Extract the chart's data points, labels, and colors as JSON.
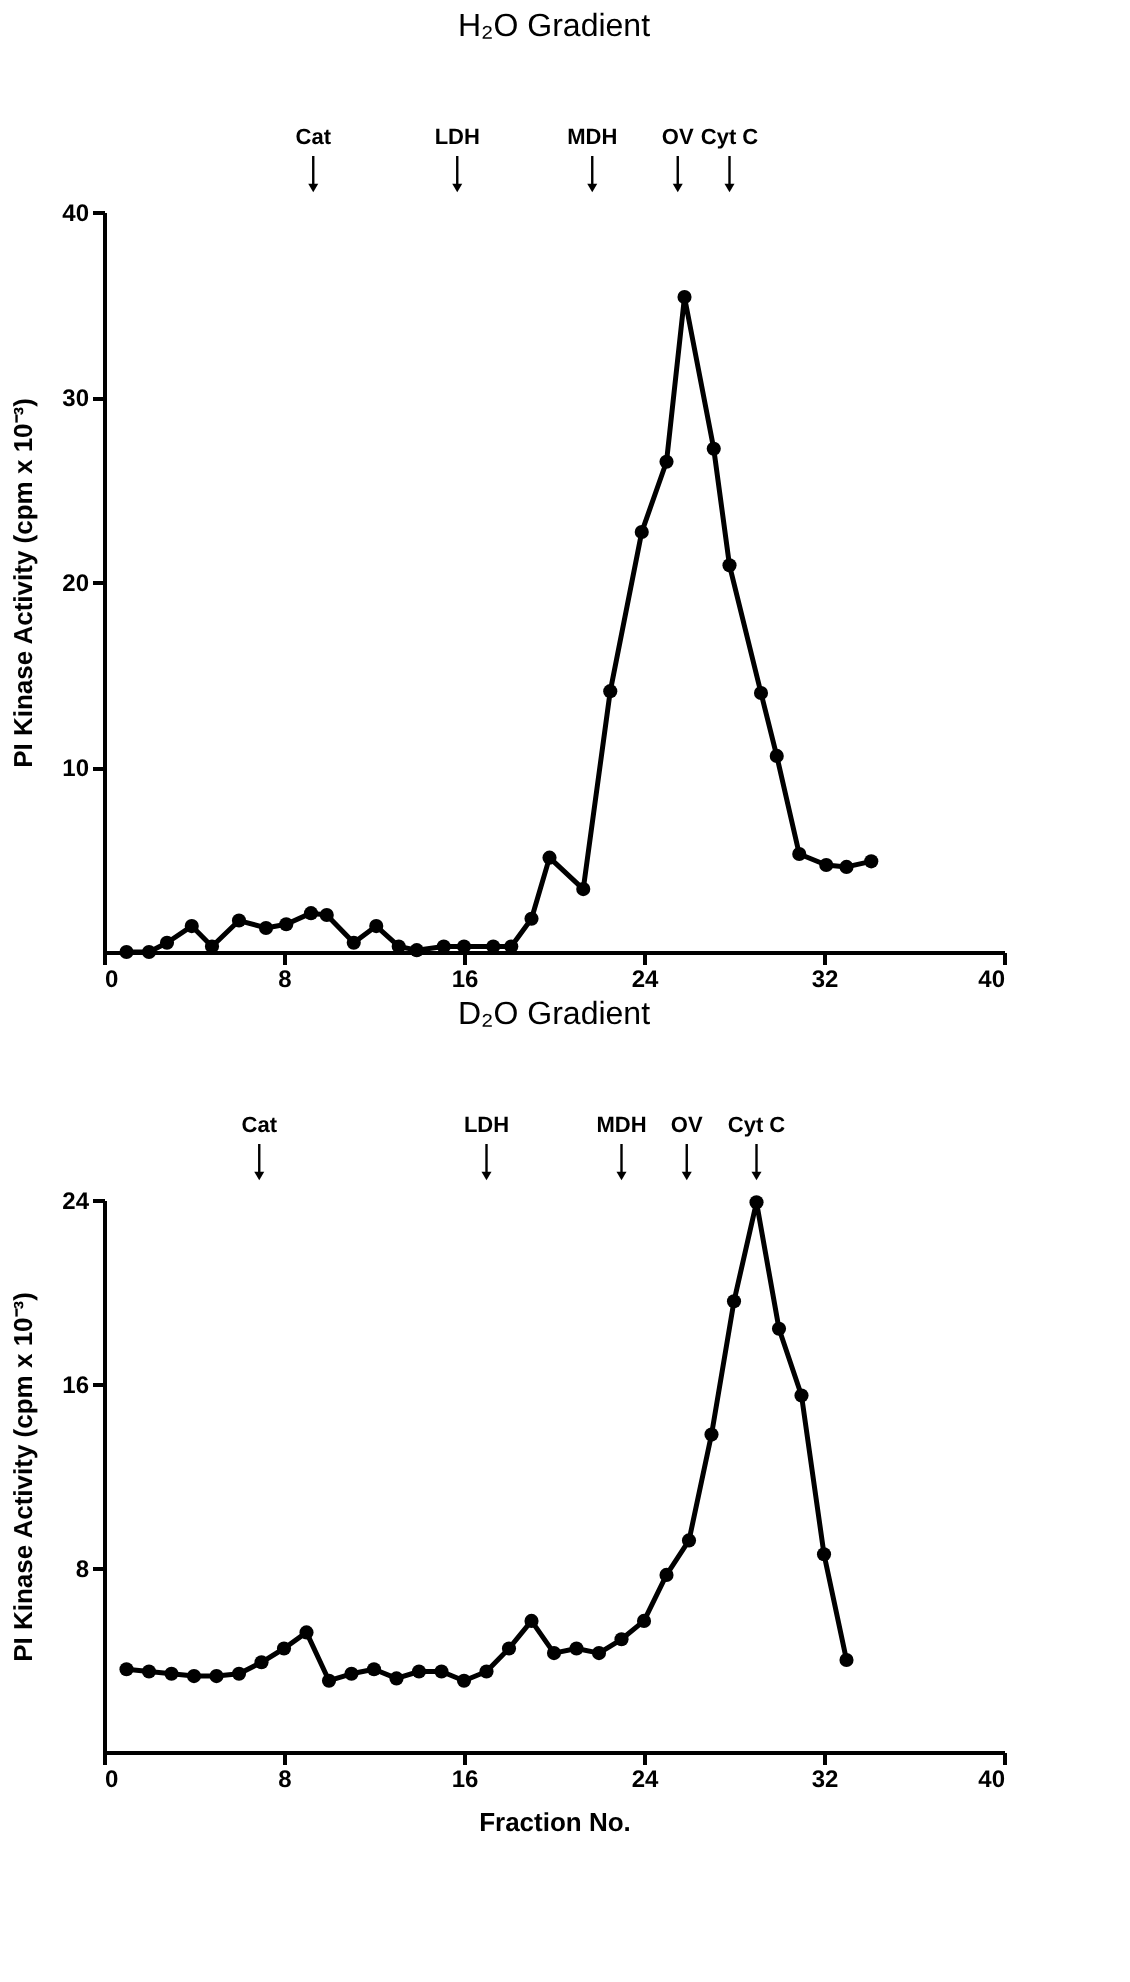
{
  "chart_data": [
    {
      "type": "line",
      "title": "H₂O Gradient",
      "ylabel": "PI Kinase Activity (cpm x 10⁻³)",
      "x": [
        1.0,
        2.0,
        2.8,
        3.9,
        4.8,
        6.0,
        7.2,
        8.1,
        9.2,
        9.9,
        11.1,
        12.1,
        13.1,
        13.9,
        15.1,
        16.0,
        17.3,
        18.1,
        19.0,
        19.8,
        21.3,
        22.5,
        23.9,
        25.0,
        25.8,
        27.1,
        27.8,
        29.2,
        29.9,
        30.9,
        32.1,
        33.0,
        34.1
      ],
      "series": [
        {
          "color": "#000000",
          "values": [
            0,
            0,
            0.5,
            1.4,
            0.3,
            1.7,
            1.3,
            1.5,
            2.1,
            2.0,
            0.5,
            1.4,
            0.3,
            0.1,
            0.3,
            0.3,
            0.3,
            0.3,
            1.8,
            5.1,
            3.4,
            14.1,
            22.7,
            26.5,
            35.4,
            27.2,
            20.9,
            14.0,
            10.6,
            5.3,
            4.7,
            4.6,
            4.9
          ]
        }
      ],
      "xlim": [
        0,
        40
      ],
      "xticks": [
        0,
        8,
        16,
        24,
        32,
        40
      ],
      "ylim": [
        0,
        40
      ],
      "yticks": [
        10,
        20,
        30,
        40
      ],
      "marker": "circle",
      "line_style": "solid",
      "grid": false,
      "ref_lines": [
        {
          "axis": "x",
          "value": 9.3,
          "label": "Cat"
        },
        {
          "axis": "x",
          "value": 15.7,
          "label": "LDH"
        },
        {
          "axis": "x",
          "value": 21.7,
          "label": "MDH"
        },
        {
          "axis": "x",
          "value": 25.5,
          "label": "OV"
        },
        {
          "axis": "x",
          "value": 27.8,
          "label": "Cyt C"
        }
      ]
    },
    {
      "type": "line",
      "title": "D₂O Gradient",
      "ylabel": "PI Kinase Activity (cpm x 10⁻³)",
      "xlabel": "Fraction No.",
      "x": [
        1,
        2,
        3,
        4,
        5,
        6,
        7,
        8,
        9,
        10,
        11,
        12,
        13,
        14,
        15,
        16,
        17,
        18,
        19,
        20,
        21,
        22,
        23,
        24,
        25,
        26,
        27,
        28,
        29,
        30,
        31,
        32,
        33
      ],
      "series": [
        {
          "color": "#000000",
          "values": [
            3.6,
            3.5,
            3.4,
            3.3,
            3.3,
            3.4,
            3.9,
            4.5,
            5.2,
            3.1,
            3.4,
            3.6,
            3.2,
            3.5,
            3.5,
            3.1,
            3.5,
            4.5,
            5.7,
            4.3,
            4.5,
            4.3,
            4.9,
            5.7,
            7.7,
            9.2,
            13.8,
            19.6,
            23.9,
            18.4,
            15.5,
            8.6,
            4.0
          ]
        }
      ],
      "xlim": [
        0,
        40
      ],
      "xticks": [
        0,
        8,
        16,
        24,
        32,
        40
      ],
      "ylim": [
        0,
        24
      ],
      "yticks": [
        8,
        16,
        24
      ],
      "marker": "circle",
      "line_style": "solid",
      "grid": false,
      "ref_lines": [
        {
          "axis": "x",
          "value": 6.9,
          "label": "Cat"
        },
        {
          "axis": "x",
          "value": 17.0,
          "label": "LDH"
        },
        {
          "axis": "x",
          "value": 23.0,
          "label": "MDH"
        },
        {
          "axis": "x",
          "value": 25.9,
          "label": "OV"
        },
        {
          "axis": "x",
          "value": 29.0,
          "label": "Cyt C"
        }
      ]
    }
  ]
}
